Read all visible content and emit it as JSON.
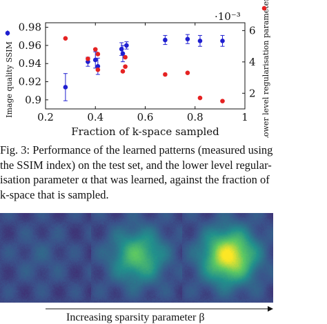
{
  "chart_data": {
    "type": "scatter",
    "xlabel": "Fraction of k-space sampled",
    "ylabel_left": "Image quality SSIM",
    "ylabel_right": "Lower level regularisation parameter α",
    "right_axis_multiplier": "·10⁻³",
    "xlim": [
      0.2,
      1.0
    ],
    "ylim_left": [
      0.89,
      0.985
    ],
    "ylim_right": [
      1.0,
      6.5
    ],
    "x_ticks": [
      "0.2",
      "0.4",
      "0.6",
      "0.8",
      "1"
    ],
    "y_ticks_left": [
      "0.9",
      "0.92",
      "0.94",
      "0.96",
      "0.98"
    ],
    "y_ticks_right": [
      "2",
      "4",
      "6"
    ],
    "grid": false,
    "legend": "markers beside each y-axis",
    "series": [
      {
        "axis": "left",
        "color": "#1f1fd0",
        "points": [
          {
            "x": 0.28,
            "y": 0.914,
            "err": 0.015
          },
          {
            "x": 0.37,
            "y": 0.942,
            "err": 0.005
          },
          {
            "x": 0.4,
            "y": 0.944,
            "err": 0.009
          },
          {
            "x": 0.41,
            "y": 0.937,
            "err": 0.009
          },
          {
            "x": 0.505,
            "y": 0.956,
            "err": 0.007
          },
          {
            "x": 0.51,
            "y": 0.951,
            "err": 0.009
          },
          {
            "x": 0.525,
            "y": 0.96,
            "err": 0.004
          },
          {
            "x": 0.68,
            "y": 0.966,
            "err": 0.005
          },
          {
            "x": 0.77,
            "y": 0.967,
            "err": 0.005
          },
          {
            "x": 0.82,
            "y": 0.965,
            "err": 0.006
          },
          {
            "x": 0.91,
            "y": 0.965,
            "err": 0.006
          }
        ]
      },
      {
        "axis": "right",
        "color": "#e52222",
        "points": [
          {
            "x": 0.28,
            "y": 5.5
          },
          {
            "x": 0.37,
            "y": 4.2
          },
          {
            "x": 0.4,
            "y": 4.8
          },
          {
            "x": 0.41,
            "y": 4.5
          },
          {
            "x": 0.41,
            "y": 3.5
          },
          {
            "x": 0.51,
            "y": 3.4
          },
          {
            "x": 0.52,
            "y": 3.7
          },
          {
            "x": 0.52,
            "y": 4.3
          },
          {
            "x": 0.68,
            "y": 3.2
          },
          {
            "x": 0.77,
            "y": 3.3
          },
          {
            "x": 0.82,
            "y": 1.7
          },
          {
            "x": 0.91,
            "y": 1.5
          }
        ]
      }
    ]
  },
  "caption": {
    "lines": [
      "Fig. 3:  Performance of the learned patterns (measured using",
      "the SSIM index) on the test set, and the lower level regular-",
      "isation parameter α that was learned, against the fraction of",
      "k-space that is sampled."
    ]
  },
  "image_strip": {
    "panels": [
      {
        "peak": 0.08
      },
      {
        "peak": 0.62
      },
      {
        "peak": 1.0
      }
    ]
  },
  "arrow_caption": "Increasing sparsity parameter β"
}
